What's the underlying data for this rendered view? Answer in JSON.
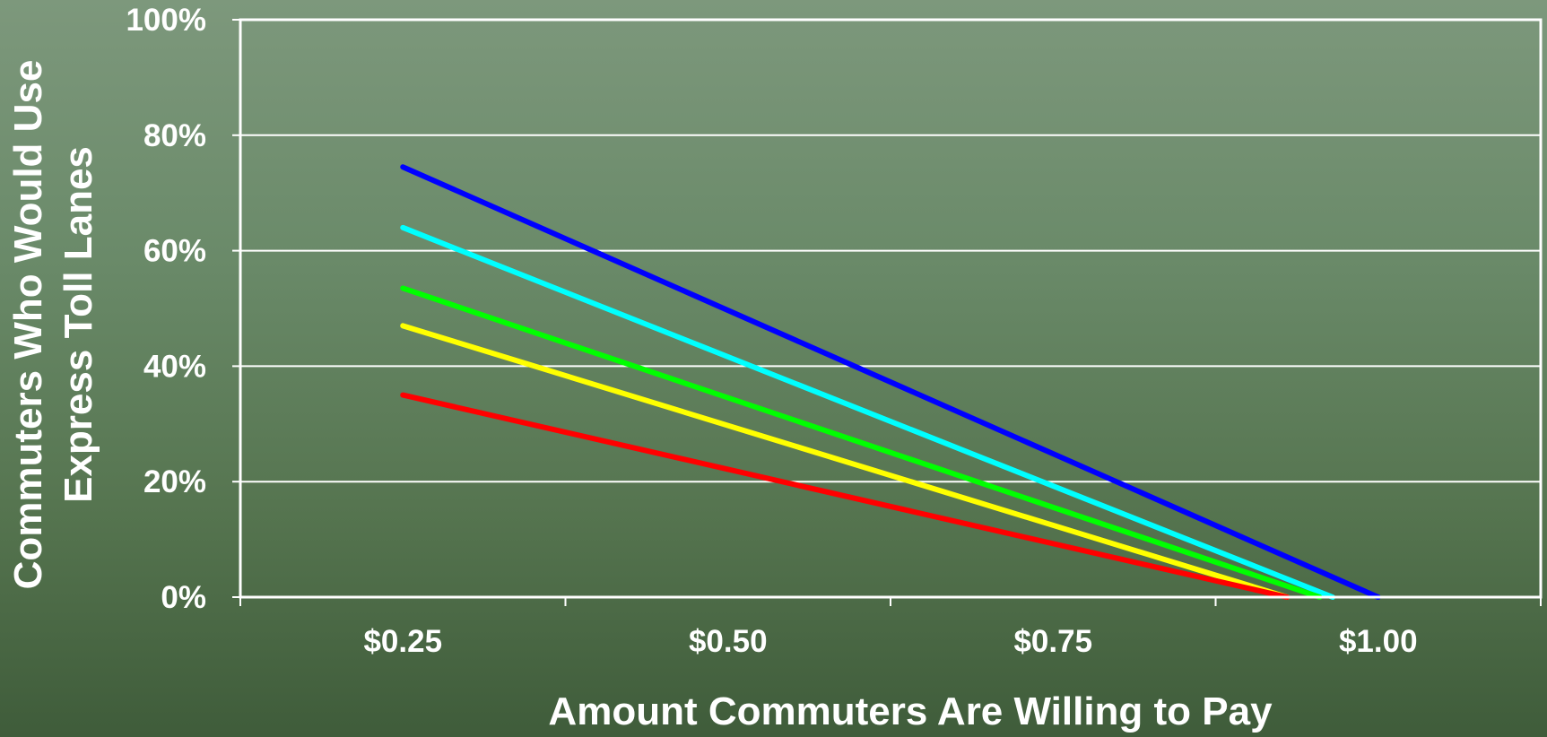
{
  "chart_data": {
    "type": "line",
    "xlabel": "Amount Commuters Are Willing to Pay",
    "ylabel_lines": [
      "Commuters Who Would Use",
      "Express Toll Lanes"
    ],
    "x_categories": [
      "$0.25",
      "$0.50",
      "$0.75",
      "$1.00"
    ],
    "y_ticks": [
      "0%",
      "20%",
      "40%",
      "60%",
      "80%",
      "100%"
    ],
    "ylim": [
      0,
      100
    ],
    "grid": true,
    "series": [
      {
        "color": "#0000ff",
        "x": [
          0.25,
          1.0
        ],
        "y": [
          74.5,
          0
        ]
      },
      {
        "color": "#00ffff",
        "x": [
          0.25,
          0.965
        ],
        "y": [
          64,
          0
        ]
      },
      {
        "color": "#00ff00",
        "x": [
          0.25,
          0.955
        ],
        "y": [
          53.5,
          0
        ]
      },
      {
        "color": "#ffff00",
        "x": [
          0.25,
          0.93
        ],
        "y": [
          47,
          0
        ]
      },
      {
        "color": "#ff0000",
        "x": [
          0.25,
          0.93
        ],
        "y": [
          35,
          0
        ]
      }
    ]
  }
}
